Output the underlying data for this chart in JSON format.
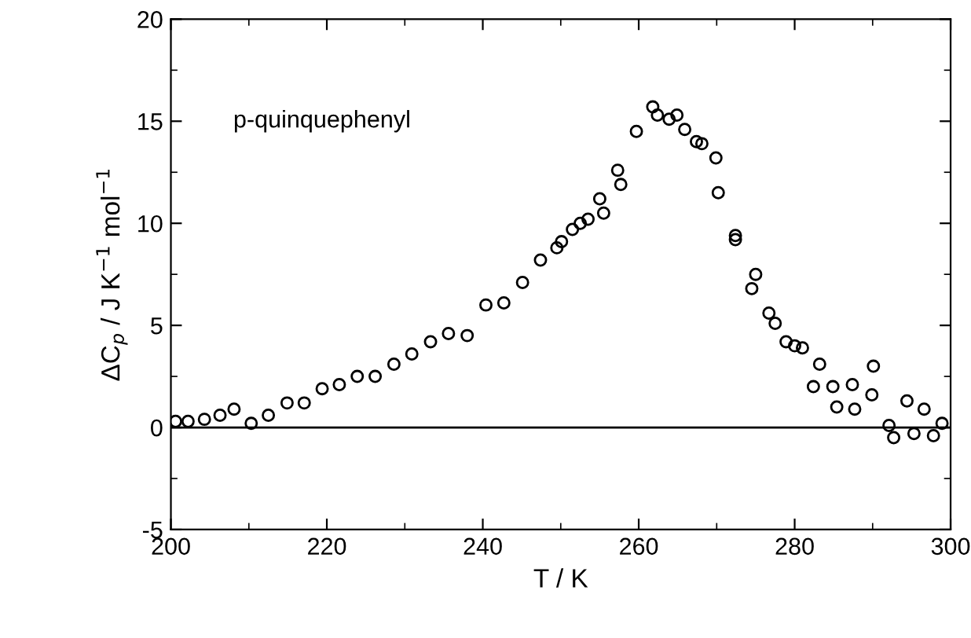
{
  "chart_data": {
    "type": "scatter",
    "xlabel": "T / K",
    "ylabel": "ΔC$_{p}$ / J K$^{−1}$ mol$^{−1}$",
    "annotations": [
      "p-quinquephenyl"
    ],
    "marker": "circle",
    "grid": false,
    "legend": false,
    "xlim": [
      200,
      300
    ],
    "xticks": [
      200,
      220,
      240,
      260,
      280,
      300
    ],
    "ylim": [
      -5,
      20
    ],
    "yticks": [
      -5,
      0,
      5,
      10,
      15,
      20
    ],
    "ref_lines": [
      {
        "axis": "y",
        "value": 0,
        "color": "#000000"
      }
    ],
    "series": [
      {
        "color": "#000000",
        "x": [
          200.6,
          202.2,
          204.3,
          206.3,
          208.1,
          210.3,
          212.5,
          214.9,
          217.1,
          219.4,
          221.6,
          223.9,
          226.2,
          228.6,
          230.9,
          233.3,
          235.6,
          238.0,
          240.4,
          242.7,
          245.1,
          247.4,
          249.5,
          250.1,
          251.5,
          252.5,
          253.5,
          255.0,
          255.5,
          257.3,
          257.7,
          259.7,
          261.8,
          262.4,
          263.9,
          264.9,
          265.9,
          267.4,
          268.1,
          269.9,
          270.2,
          272.4,
          272.4,
          274.5,
          275.0,
          276.7,
          277.5,
          278.9,
          280.0,
          281.0,
          282.4,
          283.2,
          284.9,
          285.4,
          287.4,
          287.7,
          289.9,
          290.1,
          292.1,
          292.7,
          294.4,
          295.3,
          296.6,
          297.8,
          298.9
        ],
        "values": [
          0.3,
          0.3,
          0.4,
          0.6,
          0.9,
          0.2,
          0.6,
          1.2,
          1.2,
          1.9,
          2.1,
          2.5,
          2.5,
          3.1,
          3.6,
          4.2,
          4.6,
          4.5,
          6.0,
          6.1,
          7.1,
          8.2,
          8.8,
          9.1,
          9.7,
          10.0,
          10.2,
          11.2,
          10.5,
          12.6,
          11.9,
          14.5,
          15.7,
          15.3,
          15.1,
          15.3,
          14.6,
          14.0,
          13.9,
          13.2,
          11.5,
          9.4,
          9.2,
          6.8,
          7.5,
          5.6,
          5.1,
          4.2,
          4.0,
          3.9,
          2.0,
          3.1,
          2.0,
          1.0,
          2.1,
          0.9,
          1.6,
          3.0,
          0.1,
          -0.5,
          1.3,
          -0.3,
          0.9,
          -0.4,
          0.2
        ]
      }
    ]
  }
}
